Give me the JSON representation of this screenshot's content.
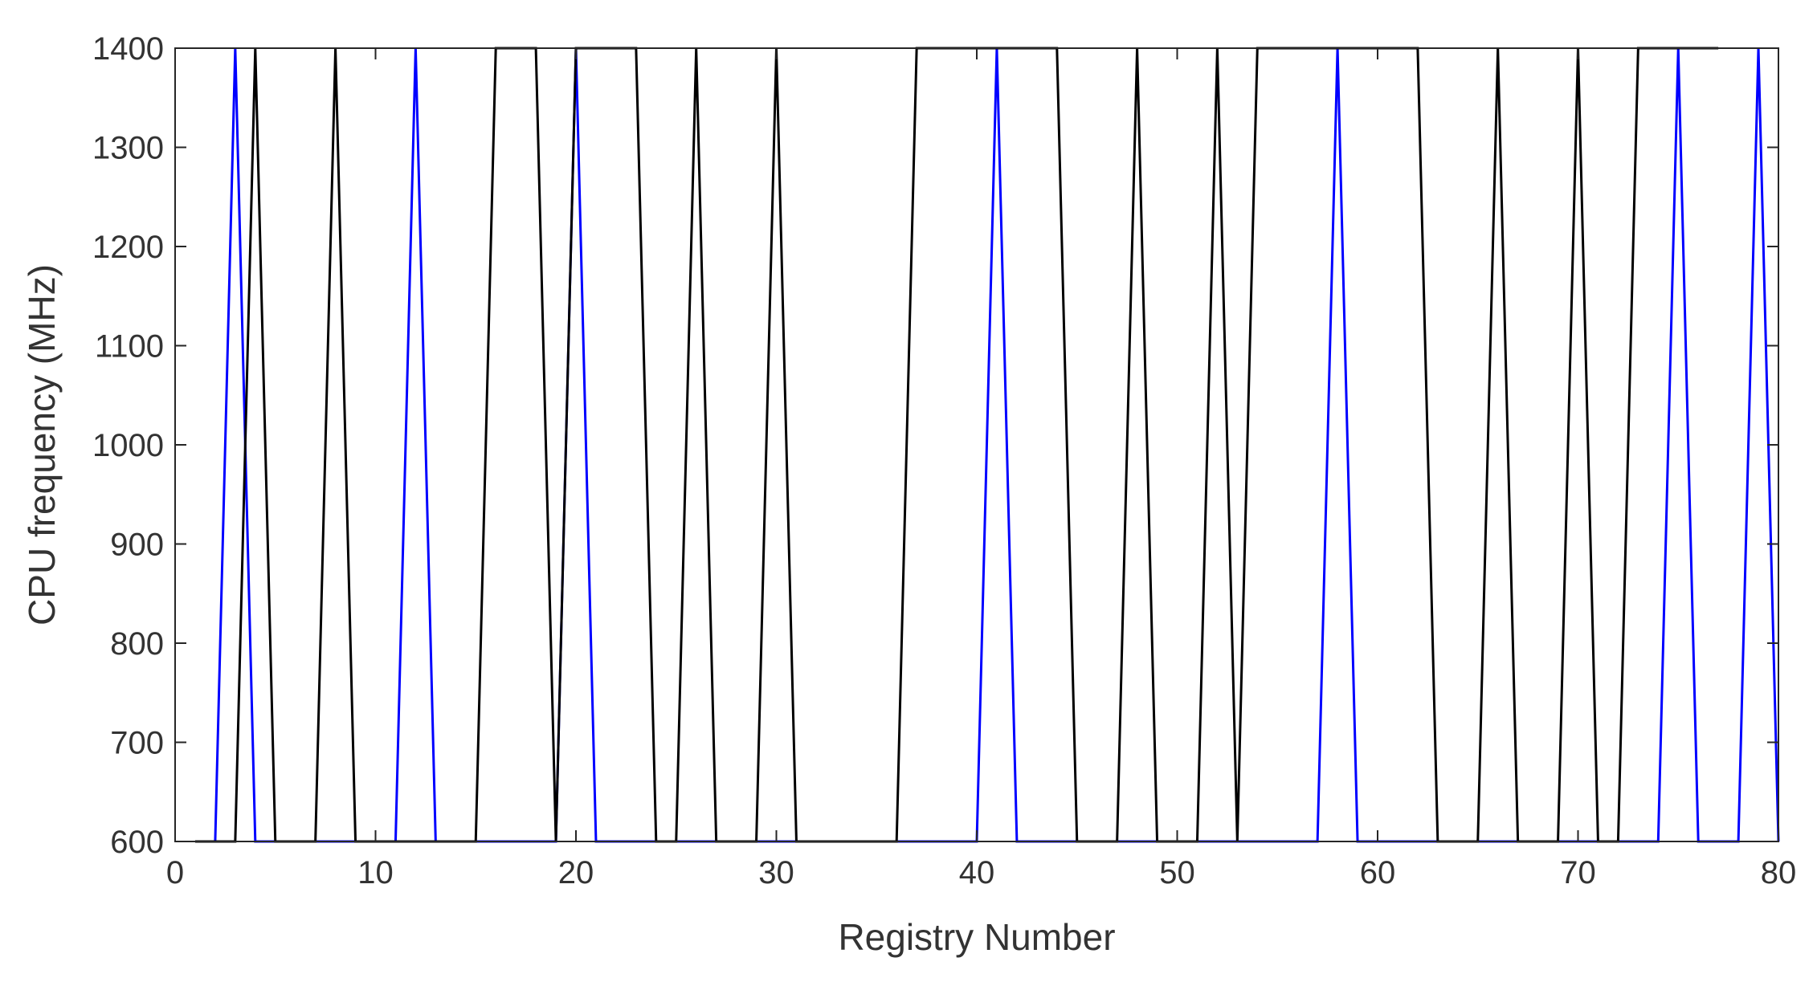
{
  "chart_data": {
    "type": "line",
    "title": "",
    "xlabel": "Registry Number",
    "ylabel": "CPU frequency (MHz)",
    "xlim": [
      0,
      80
    ],
    "ylim": [
      600,
      1400
    ],
    "xticks": [
      0,
      10,
      20,
      30,
      40,
      50,
      60,
      70,
      80
    ],
    "yticks": [
      600,
      700,
      800,
      900,
      1000,
      1100,
      1200,
      1300,
      1400
    ],
    "xtick_labels": [
      "0",
      "10",
      "20",
      "30",
      "40",
      "50",
      "60",
      "70",
      "80"
    ],
    "ytick_labels": [
      "600",
      "700",
      "800",
      "900",
      "1000",
      "1100",
      "1200",
      "1300",
      "1400"
    ],
    "grid": false,
    "legend": "none",
    "series": [
      {
        "color": "#0000ff",
        "x": [
          2,
          3,
          4,
          11,
          12,
          13,
          16,
          17,
          19,
          20,
          21,
          37,
          38,
          40,
          41,
          42,
          53,
          54,
          55,
          57,
          58,
          59,
          61,
          62,
          74,
          75,
          76,
          78,
          79,
          80
        ],
        "y": [
          600,
          1400,
          600,
          600,
          1400,
          600,
          600,
          600,
          600,
          1400,
          600,
          600,
          600,
          600,
          1400,
          600,
          600,
          600,
          600,
          600,
          1400,
          600,
          600,
          600,
          600,
          1400,
          600,
          600,
          1400,
          600
        ]
      },
      {
        "color": "#000000",
        "x": [
          1,
          3,
          4,
          5,
          7,
          8,
          9,
          15,
          16,
          18,
          19,
          20,
          23,
          24,
          25,
          26,
          27,
          29,
          30,
          31,
          36,
          37,
          44,
          45,
          47,
          48,
          49,
          51,
          52,
          53,
          54,
          62,
          63,
          65,
          66,
          67,
          69,
          70,
          71,
          72,
          73,
          77
        ],
        "y": [
          600,
          600,
          1400,
          600,
          600,
          1400,
          600,
          600,
          1400,
          1400,
          600,
          1400,
          1400,
          600,
          600,
          1400,
          600,
          600,
          1400,
          600,
          600,
          1400,
          1400,
          600,
          600,
          1400,
          600,
          600,
          1400,
          600,
          1400,
          1400,
          600,
          600,
          1400,
          600,
          600,
          1400,
          600,
          600,
          1400,
          1400
        ]
      }
    ]
  }
}
